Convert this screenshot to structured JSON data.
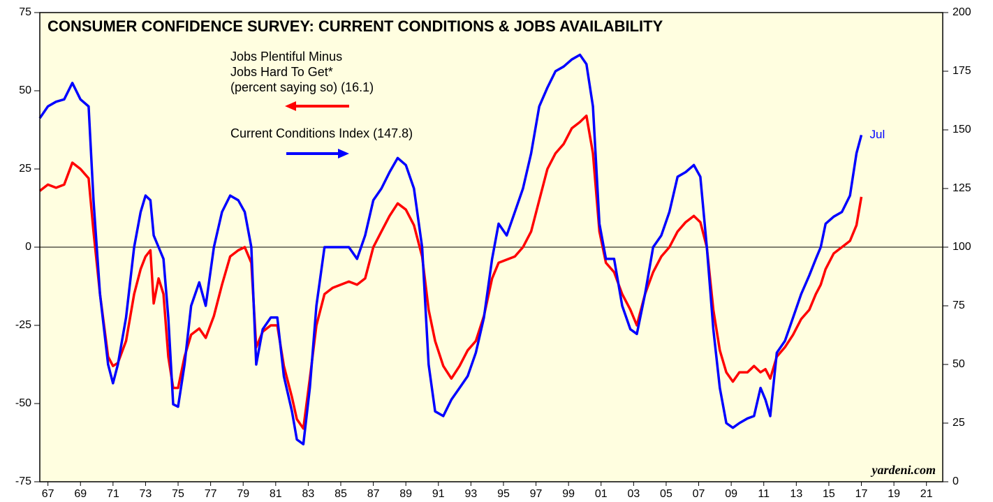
{
  "chart_data": {
    "type": "line",
    "title": "CONSUMER CONFIDENCE SURVEY: CURRENT CONDITIONS & JOBS AVAILABILITY",
    "annotation": "Jul",
    "source": "yardeni.com",
    "x": [
      1967.0,
      1967.5,
      1968.0,
      1968.5,
      1969.0,
      1969.5,
      1970.0,
      1970.3,
      1970.7,
      1971.2,
      1971.5,
      1971.8,
      1972.3,
      1972.8,
      1973.2,
      1973.5,
      1973.8,
      1974.0,
      1974.3,
      1974.6,
      1974.9,
      1975.2,
      1975.5,
      1975.9,
      1976.3,
      1976.8,
      1977.2,
      1977.7,
      1978.2,
      1978.7,
      1979.2,
      1979.6,
      1980.0,
      1980.3,
      1980.7,
      1981.2,
      1981.6,
      1982.0,
      1982.5,
      1982.8,
      1983.2,
      1983.6,
      1984.0,
      1984.5,
      1985.0,
      1985.5,
      1986.0,
      1986.5,
      1987.0,
      1987.5,
      1988.0,
      1988.5,
      1989.0,
      1989.5,
      1990.0,
      1990.5,
      1990.9,
      1991.3,
      1991.8,
      1992.3,
      1992.8,
      1993.3,
      1993.8,
      1994.3,
      1994.8,
      1995.2,
      1995.7,
      1996.2,
      1996.7,
      1997.2,
      1997.7,
      1998.2,
      1998.7,
      1999.2,
      1999.7,
      2000.2,
      2000.6,
      2001.0,
      2001.4,
      2001.8,
      2002.3,
      2002.8,
      2003.3,
      2003.7,
      2004.2,
      2004.7,
      2005.2,
      2005.7,
      2006.2,
      2006.7,
      2007.2,
      2007.6,
      2008.0,
      2008.4,
      2008.8,
      2009.2,
      2009.6,
      2010.0,
      2010.5,
      2010.9,
      2011.3,
      2011.6,
      2011.9,
      2012.3,
      2012.8,
      2013.3,
      2013.8,
      2014.3,
      2014.7,
      2015.0,
      2015.3,
      2015.8,
      2016.3,
      2016.8,
      2017.2,
      2017.5
    ],
    "series": [
      {
        "name": "Current Conditions Index (147.8)",
        "color": "#0000ff",
        "axis": "y2",
        "values": [
          155,
          160,
          162,
          163,
          170,
          163,
          160,
          120,
          80,
          50,
          42,
          50,
          70,
          100,
          115,
          122,
          120,
          105,
          100,
          95,
          70,
          33,
          32,
          50,
          75,
          85,
          75,
          100,
          115,
          122,
          120,
          115,
          100,
          50,
          65,
          70,
          70,
          45,
          30,
          18,
          16,
          40,
          75,
          100,
          100,
          100,
          100,
          95,
          105,
          120,
          125,
          132,
          138,
          135,
          125,
          100,
          50,
          30,
          28,
          35,
          40,
          45,
          55,
          70,
          95,
          110,
          105,
          115,
          125,
          140,
          160,
          168,
          175,
          177,
          180,
          182,
          178,
          160,
          110,
          95,
          95,
          75,
          65,
          63,
          80,
          100,
          105,
          115,
          130,
          132,
          135,
          130,
          100,
          65,
          40,
          25,
          23,
          25,
          27,
          28,
          40,
          35,
          28,
          55,
          60,
          70,
          80,
          88,
          95,
          100,
          110,
          113,
          115,
          122,
          140,
          147.8
        ]
      },
      {
        "name": "Jobs Plentiful Minus\nJobs Hard To Get*\n(percent saying so) (16.1)",
        "color": "#ff0000",
        "axis": "y",
        "values": [
          18,
          20,
          19,
          20,
          27,
          25,
          22,
          5,
          -15,
          -35,
          -38,
          -37,
          -30,
          -15,
          -7,
          -3,
          -1,
          -18,
          -10,
          -15,
          -35,
          -45,
          -45,
          -35,
          -28,
          -26,
          -29,
          -22,
          -12,
          -3,
          -1,
          0,
          -5,
          -32,
          -27,
          -25,
          -25,
          -38,
          -48,
          -55,
          -58,
          -42,
          -25,
          -15,
          -13,
          -12,
          -11,
          -12,
          -10,
          0,
          5,
          10,
          14,
          12,
          7,
          -3,
          -20,
          -30,
          -38,
          -42,
          -38,
          -33,
          -30,
          -22,
          -10,
          -5,
          -4,
          -3,
          0,
          5,
          15,
          25,
          30,
          33,
          38,
          40,
          42,
          30,
          5,
          -5,
          -8,
          -15,
          -20,
          -25,
          -15,
          -8,
          -3,
          0,
          5,
          8,
          10,
          8,
          0,
          -20,
          -33,
          -40,
          -43,
          -40,
          -40,
          -38,
          -40,
          -39,
          -42,
          -35,
          -32,
          -28,
          -23,
          -20,
          -15,
          -12,
          -7,
          -2,
          0,
          2,
          7,
          16.1
        ]
      }
    ],
    "xlim": [
      1967,
      2022.5
    ],
    "xticks": [
      {
        "value": 1967.5,
        "label": "67"
      },
      {
        "value": 1969.5,
        "label": "69"
      },
      {
        "value": 1971.5,
        "label": "71"
      },
      {
        "value": 1973.5,
        "label": "73"
      },
      {
        "value": 1975.5,
        "label": "75"
      },
      {
        "value": 1977.5,
        "label": "77"
      },
      {
        "value": 1979.5,
        "label": "79"
      },
      {
        "value": 1981.5,
        "label": "81"
      },
      {
        "value": 1983.5,
        "label": "83"
      },
      {
        "value": 1985.5,
        "label": "85"
      },
      {
        "value": 1987.5,
        "label": "87"
      },
      {
        "value": 1989.5,
        "label": "89"
      },
      {
        "value": 1991.5,
        "label": "91"
      },
      {
        "value": 1993.5,
        "label": "93"
      },
      {
        "value": 1995.5,
        "label": "95"
      },
      {
        "value": 1997.5,
        "label": "97"
      },
      {
        "value": 1999.5,
        "label": "99"
      },
      {
        "value": 2001.5,
        "label": "01"
      },
      {
        "value": 2003.5,
        "label": "03"
      },
      {
        "value": 2005.5,
        "label": "05"
      },
      {
        "value": 2007.5,
        "label": "07"
      },
      {
        "value": 2009.5,
        "label": "09"
      },
      {
        "value": 2011.5,
        "label": "11"
      },
      {
        "value": 2013.5,
        "label": "13"
      },
      {
        "value": 2015.5,
        "label": "15"
      },
      {
        "value": 2017.5,
        "label": "17"
      },
      {
        "value": 2019.5,
        "label": "19"
      },
      {
        "value": 2021.5,
        "label": "21"
      }
    ],
    "ylim": [
      -75,
      75
    ],
    "yticks": [
      -75,
      -50,
      -25,
      0,
      25,
      50,
      75
    ],
    "y2lim": [
      0,
      200
    ],
    "y2ticks": [
      0,
      25,
      50,
      75,
      100,
      125,
      150,
      175,
      200
    ]
  }
}
